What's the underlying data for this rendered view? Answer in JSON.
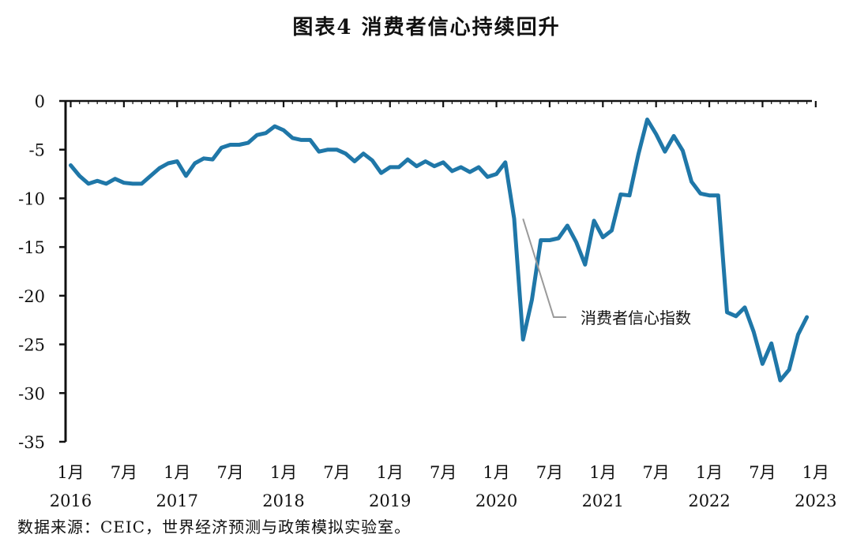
{
  "title": "图表4 消费者信心持续回升",
  "source": "数据来源：CEIC，世界经济预测与政策模拟实验室。",
  "chart_data": {
    "type": "line",
    "title": "图表4 消费者信心持续回升",
    "xlabel": "",
    "ylabel": "",
    "ylim": [
      -35,
      0
    ],
    "yticks": [
      0,
      -5,
      -10,
      -15,
      -20,
      -25,
      -30,
      -35
    ],
    "xlim": [
      "2016-01",
      "2023-01"
    ],
    "x_ticks": [
      {
        "month": "1月",
        "year": "2016"
      },
      {
        "month": "7月",
        "year": ""
      },
      {
        "month": "1月",
        "year": "2017"
      },
      {
        "month": "7月",
        "year": ""
      },
      {
        "month": "1月",
        "year": "2018"
      },
      {
        "month": "7月",
        "year": ""
      },
      {
        "month": "1月",
        "year": "2019"
      },
      {
        "month": "7月",
        "year": ""
      },
      {
        "month": "1月",
        "year": "2020"
      },
      {
        "month": "7月",
        "year": ""
      },
      {
        "month": "1月",
        "year": "2021"
      },
      {
        "month": "7月",
        "year": ""
      },
      {
        "month": "1月",
        "year": "2022"
      },
      {
        "month": "7月",
        "year": ""
      },
      {
        "month": "1月",
        "year": "2023"
      }
    ],
    "grid": false,
    "line_color": "#1f77a8",
    "series": [
      {
        "name": "消费者信心指数",
        "start": "2016-01",
        "values": [
          -6.6,
          -7.7,
          -8.5,
          -8.2,
          -8.5,
          -8.0,
          -8.4,
          -8.5,
          -8.5,
          -7.7,
          -6.9,
          -6.4,
          -6.2,
          -7.7,
          -6.4,
          -5.9,
          -6.0,
          -4.8,
          -4.5,
          -4.5,
          -4.3,
          -3.5,
          -3.3,
          -2.6,
          -3.0,
          -3.8,
          -4.0,
          -4.0,
          -5.2,
          -5.0,
          -5.0,
          -5.4,
          -6.2,
          -5.4,
          -6.1,
          -7.4,
          -6.8,
          -6.8,
          -6.0,
          -6.7,
          -6.2,
          -6.7,
          -6.3,
          -7.2,
          -6.8,
          -7.3,
          -6.8,
          -7.8,
          -7.5,
          -6.3,
          -12.1,
          -24.5,
          -20.4,
          -14.3,
          -14.3,
          -14.1,
          -12.8,
          -14.5,
          -16.8,
          -12.3,
          -14.0,
          -13.3,
          -9.6,
          -9.7,
          -5.5,
          -1.9,
          -3.4,
          -5.2,
          -3.6,
          -5.1,
          -8.3,
          -9.5,
          -9.7,
          -9.7,
          -21.7,
          -22.1,
          -21.2,
          -23.7,
          -27.0,
          -24.9,
          -28.7,
          -27.6,
          -24.0,
          -22.2
        ]
      }
    ],
    "annotations": [
      {
        "text": "消费者信心指数",
        "points_to": {
          "x": "2020-04",
          "y": -12.1
        }
      }
    ]
  }
}
